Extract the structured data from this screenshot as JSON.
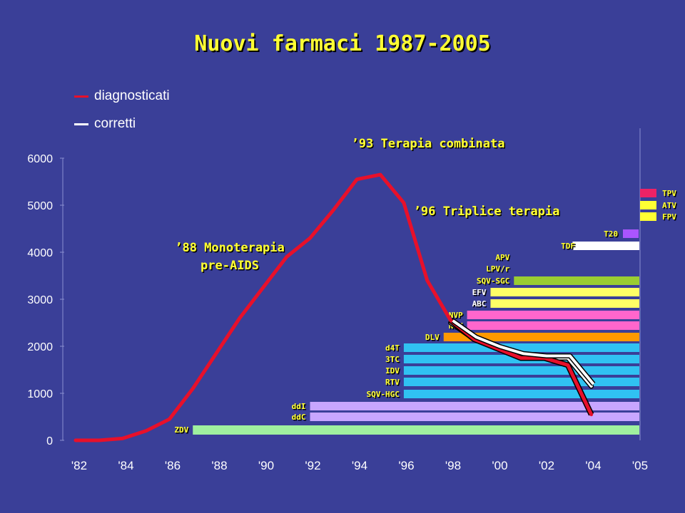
{
  "slide": {
    "title": "Nuovi farmaci  1987-2005",
    "legend": [
      {
        "label": "diagnosticati",
        "color": "#e8102a"
      },
      {
        "label": "corretti",
        "color": "#ffffff"
      }
    ],
    "annotations": [
      {
        "text": "’93 Terapia combinata"
      },
      {
        "text": "’96 Triplice terapia"
      },
      {
        "text": "’88 Monoterapia"
      },
      {
        "text": "pre-AIDS"
      }
    ]
  },
  "chart_data": {
    "type": "line",
    "title": "Nuovi farmaci  1987-2005",
    "xlabel": "",
    "ylabel": "",
    "x_tick_labels": [
      "'82",
      "'84",
      "'86",
      "'88",
      "'90",
      "'92",
      "'94",
      "'96",
      "'98",
      "'00",
      "'02",
      "'04",
      "'05"
    ],
    "y_ticks": [
      0,
      1000,
      2000,
      3000,
      4000,
      5000,
      6000
    ],
    "ylim": [
      0,
      6000
    ],
    "xlim": [
      1982,
      2006
    ],
    "grid": false,
    "series": [
      {
        "name": "diagnosticati",
        "color": "#e8102a",
        "x": [
          1982,
          1983,
          1984,
          1985,
          1986,
          1987,
          1988,
          1989,
          1990,
          1991,
          1992,
          1993,
          1994,
          1995,
          1996,
          1997,
          1998,
          1999,
          2000,
          2001,
          2002,
          2003,
          2004
        ],
        "values": [
          0,
          0,
          40,
          200,
          450,
          1100,
          1850,
          2600,
          3250,
          3900,
          4300,
          4900,
          5550,
          5650,
          5050,
          3400,
          2550,
          2150,
          1950,
          1750,
          1750,
          1600,
          550
        ]
      },
      {
        "name": "corretti",
        "color": "#ffffff",
        "x": [
          1998,
          1999,
          2000,
          2001,
          2002,
          2003,
          2004
        ],
        "values": [
          2500,
          2150,
          1950,
          1800,
          1750,
          1750,
          1150
        ]
      }
    ],
    "drug_bars": [
      {
        "label": "ZDV",
        "start": 1987,
        "color": "#9ff09f"
      },
      {
        "label": "ddC",
        "start": 1992,
        "color": "#c8a6ff"
      },
      {
        "label": "ddI",
        "start": 1992,
        "color": "#c8a6ff"
      },
      {
        "label": "SQV-HGC",
        "start": 1996,
        "color": "#30c2f2"
      },
      {
        "label": "RTV",
        "start": 1996,
        "color": "#30c2f2"
      },
      {
        "label": "IDV",
        "start": 1996,
        "color": "#30c2f2"
      },
      {
        "label": "3TC",
        "start": 1996,
        "color": "#30c2f2"
      },
      {
        "label": "d4T",
        "start": 1996,
        "color": "#30c2f2"
      },
      {
        "label": "DLV",
        "start": 1997.7,
        "color": "#ff9900"
      },
      {
        "label": "NFV",
        "start": 1998.7,
        "color": "#ff66cc"
      },
      {
        "label": "NVP",
        "start": 1998.7,
        "color": "#ff66cc"
      },
      {
        "label": "ABC",
        "start": 1999.7,
        "color": "#ffff66"
      },
      {
        "label": "EFV",
        "start": 1999.7,
        "color": "#ffff66"
      },
      {
        "label": "SQV-SGC",
        "start": 2000.7,
        "color": "#9acd32"
      },
      {
        "label": "LPV/r",
        "start": 2000.7,
        "color": null
      },
      {
        "label": "APV",
        "start": 2000.7,
        "color": null
      },
      {
        "label": "TDF",
        "start": 2003.2,
        "color": "#ffffff"
      },
      {
        "label": "T20",
        "start": 2005,
        "color": "#aa55ff"
      }
    ],
    "legend_swatches": [
      {
        "label": "TPV",
        "color": "#ee2266"
      },
      {
        "label": "ATV",
        "color": "#ffff33"
      },
      {
        "label": "FPV",
        "color": "#ffff33"
      }
    ]
  }
}
